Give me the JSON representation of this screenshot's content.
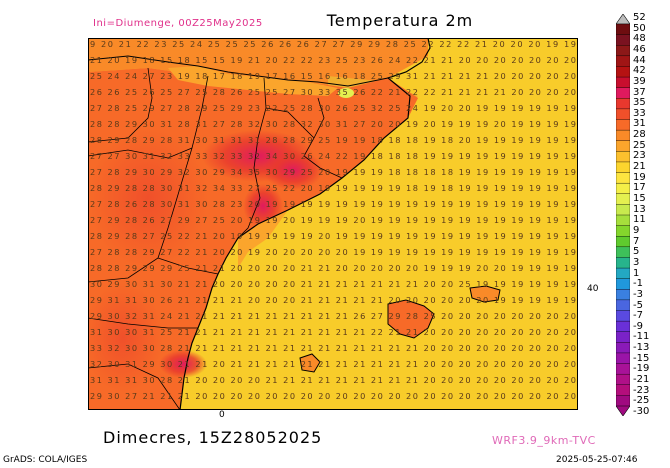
{
  "header": {
    "init_label": "Ini=Diumenge, 00Z25May2025",
    "title": "Temperatura 2m"
  },
  "footer": {
    "valid_time": "Dimecres, 15Z28052025",
    "model": "WRF3.9_9km-TVC",
    "software": "GrADS: COLA/IGES",
    "timestamp": "2025-05-25-07:46"
  },
  "axis": {
    "lon_tick": "0",
    "lat_tick": "40"
  },
  "colors": {
    "land_red": "#e8382e",
    "land_orange": "#f76a28",
    "sea_yellow": "#f8cc2a",
    "hot_pink": "#e01a5e",
    "border": "#000000"
  },
  "colorbar": {
    "labels": [
      "52",
      "50",
      "48",
      "46",
      "44",
      "42",
      "39",
      "37",
      "35",
      "33",
      "31",
      "28",
      "25",
      "23",
      "21",
      "19",
      "17",
      "15",
      "13",
      "11",
      "9",
      "7",
      "5",
      "3",
      "1",
      "-1",
      "-3",
      "-5",
      "-7",
      "-9",
      "-11",
      "-13",
      "-15",
      "-19",
      "-21",
      "-23",
      "-25",
      "-30"
    ],
    "colors": [
      "#bdbdbd",
      "#6e0d10",
      "#7a1220",
      "#8c1818",
      "#a01515",
      "#b51212",
      "#c80e2e",
      "#e01a5e",
      "#e8382e",
      "#f0502a",
      "#f76a28",
      "#f98a28",
      "#fba52c",
      "#fcc02e",
      "#fcd52e",
      "#fde540",
      "#f4ef48",
      "#e4f050",
      "#c8ea4e",
      "#a6df3c",
      "#84d62c",
      "#5fcb2e",
      "#3ec05a",
      "#27b48c",
      "#23a8c2",
      "#2098dc",
      "#3a80e0",
      "#4a66e0",
      "#5a4ae0",
      "#6a30d8",
      "#7a22c8",
      "#8a1ab8",
      "#9a14a8",
      "#a81298",
      "#b01088",
      "#b40e7c",
      "#a00a80"
    ]
  },
  "grid_values": [
    "9 20 21 22 23 25 24 25 25 25 26 26 26 27 27 29 29 28 25 22 22 22 21 20 20 20 19 19",
    "21 20 19 18 15 18 15 15 19 21 20 22 22 23 25 23 26 24 22 21 21 20 20 20 20 20 20 20",
    "25 24 24 27 23 19 18 17 18 19 17 16 15 16 16 18 25 29 31 21 21 21 21 20 20 20 20 20",
    "26 26 25 26 25 27 25 28 26 25 25 27 30 33 35 26 22 21 22 22 21 21 21 21 20 20 20 20",
    "27 28 25 29 27 28 29 25 29 23 22 25 28 30 26 25 32 25 24 19 20 20 19 19 19 19 19 19",
    "28 28 29 30 31 28 31 27 28 32 30 28 32 30 31 27 20 20 19 20 19 19 19 20 19 19 19 19",
    "28 29 28 29 28 31 30 31 31 31 28 28 29 25 19 19 18 18 18 19 18 20 19 19 19 19 19 19",
    "27 27 30 31 32 33 33 32 33 32 34 30 26 24 22 19 18 18 18 19 19 19 19 19 19 19 19 19",
    "27 28 29 30 29 32 30 29 34 35 30 29 25 20 19 19 19 18 18 18 18 19 19 19 19 19 19 19",
    "28 29 28 28 30 31 32 34 33 27 25 22 20 19 19 19 19 19 18 19 18 19 19 19 19 19 19 19",
    "27 28 26 28 30 31 30 28 23 20 19 19 19 19 19 19 19 19 19 19 19 19 19 19 19 19 19 19",
    "27 29 28 26 27 29 27 25 20 19 19 20 19 19 19 20 19 19 19 19 19 19 19 19 19 19 19 19",
    "28 29 28 27 25 22 21 20 19 19 19 19 19 20 19 19 19 19 19 19 19 19 19 19 19 19 19 19",
    "27 28 28 29 27 22 21 20 20 19 20 20 20 20 20 19 19 19 19 19 19 19 19 19 19 19 19 19",
    "28 28 29 29 29 25 21 21 20 20 20 20 21 21 20 20 20 20 20 19 19 19 20 20 19 19 19 19",
    "30 29 30 31 30 21 21 20 20 20 20 20 21 21 21 21 21 21 21 20 20 25 19 19 19 19 19 19",
    "29 31 31 30 26 21 21 21 21 20 20 20 21 21 21 21 21 20 20 20 20 20 20 19 19 19 19 19",
    "29 30 32 31 24 21 21 21 21 21 21 21 21 21 21 26 27 29 28 25 20 20 20 20 20 20 20 20",
    "31 30 30 31 25 21 21 21 21 21 21 21 21 21 21 21 22 21 21 20 20 20 20 20 20 20 20 20",
    "33 32 30 30 28 21 21 21 21 21 21 21 21 21 21 21 21 21 21 20 20 20 20 20 20 20 20 20",
    "32 30 31 29 30 21 21 20 21 21 21 21 21 21 21 21 21 21 21 20 20 20 20 20 20 20 20 20",
    "31 31 31 30 28 21 20 20 20 20 21 21 21 21 21 21 21 21 21 20 20 20 20 20 20 20 20 20",
    "29 30 27 21 21 21 20 20 20 20 20 20 20 20 20 20 20 20 20 20 20 20 20 20 20 20 20 20"
  ]
}
